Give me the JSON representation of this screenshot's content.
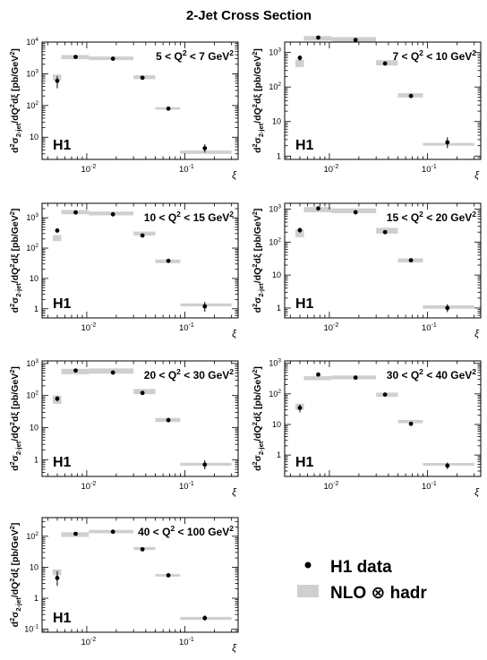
{
  "figure": {
    "title": "2-Jet Cross Section",
    "xlabel": "ξ",
    "ylabel_parts": {
      "d1": "d",
      "sup2a": "2",
      "sigma": "σ",
      "sub": "2-jet",
      "slash": "/dQ",
      "sup2b": "2",
      "dxi": "dξ",
      "unit": " [pb/GeV",
      "sup2c": "2",
      "close": "]"
    },
    "x_tick_labels": [
      {
        "value": 0.01,
        "base": "10",
        "exp": "-2"
      },
      {
        "value": 0.1,
        "base": "10",
        "exp": "-1"
      }
    ],
    "experiment_label": "H1",
    "legend": {
      "data_label": "H1 data",
      "theory_label": "NLO ⊗ hadr",
      "data_marker": "black dot with vertical error bar",
      "theory_marker": "grey band"
    },
    "colors": {
      "data": "#000000",
      "band": "#cfcfcf",
      "frame": "#000000"
    }
  },
  "chart_data": [
    {
      "type": "scatter",
      "panel": "5 < Q² < 7 GeV²",
      "q2_label": {
        "a": "5 < Q",
        "sup": "2",
        "b": " < 7 GeV",
        "sup2": "2"
      },
      "xscale": "log",
      "yscale": "log",
      "xlim": [
        0.0035,
        0.35
      ],
      "ylim": [
        2,
        10000
      ],
      "y_ticks": [
        {
          "value": 10,
          "base": "10",
          "exp": ""
        },
        {
          "value": 100,
          "base": "10",
          "exp": "2"
        },
        {
          "value": 1000,
          "base": "10",
          "exp": "3"
        },
        {
          "value": 10000,
          "base": "10",
          "exp": "4"
        }
      ],
      "bins": [
        [
          0.0045,
          0.0055
        ],
        [
          0.0055,
          0.0105
        ],
        [
          0.0105,
          0.03
        ],
        [
          0.03,
          0.05
        ],
        [
          0.05,
          0.09
        ],
        [
          0.09,
          0.3
        ]
      ],
      "data": {
        "x": [
          0.005,
          0.0077,
          0.0185,
          0.037,
          0.068,
          0.16
        ],
        "y": [
          600,
          3400,
          3000,
          750,
          80,
          4.5
        ],
        "err_lo": [
          250,
          150,
          150,
          50,
          6,
          1.2
        ],
        "err_hi": [
          250,
          150,
          150,
          50,
          6,
          1.5
        ]
      },
      "nlo": {
        "y_lo": [
          620,
          2900,
          2700,
          680,
          74,
          3.0
        ],
        "y_hi": [
          950,
          3900,
          3500,
          900,
          88,
          3.8
        ]
      }
    },
    {
      "type": "scatter",
      "panel": "7 < Q² < 10 GeV²",
      "q2_label": {
        "a": "7 < Q",
        "sup": "2",
        "b": " < 10 GeV",
        "sup2": "2"
      },
      "xscale": "log",
      "yscale": "log",
      "xlim": [
        0.0035,
        0.35
      ],
      "ylim": [
        0.8,
        2000
      ],
      "y_ticks": [
        {
          "value": 1,
          "base": "1",
          "exp": ""
        },
        {
          "value": 10,
          "base": "10",
          "exp": ""
        },
        {
          "value": 100,
          "base": "10",
          "exp": "2"
        },
        {
          "value": 1000,
          "base": "10",
          "exp": "3"
        }
      ],
      "bins": [
        [
          0.0045,
          0.0055
        ],
        [
          0.0055,
          0.0105
        ],
        [
          0.0105,
          0.03
        ],
        [
          0.03,
          0.05
        ],
        [
          0.05,
          0.09
        ],
        [
          0.09,
          0.3
        ]
      ],
      "data": {
        "x": [
          0.005,
          0.0077,
          0.0185,
          0.037,
          0.068,
          0.16
        ],
        "y": [
          700,
          2700,
          2300,
          480,
          55,
          2.5
        ],
        "err_lo": [
          120,
          120,
          120,
          40,
          5,
          0.8
        ],
        "err_hi": [
          120,
          120,
          120,
          40,
          5,
          1.0
        ]
      },
      "nlo": {
        "y_lo": [
          380,
          2200,
          2000,
          420,
          50,
          2.0
        ],
        "y_hi": [
          620,
          3000,
          2800,
          600,
          66,
          2.4
        ]
      }
    },
    {
      "type": "scatter",
      "panel": "10 < Q² < 15 GeV²",
      "q2_label": {
        "a": "10 < Q",
        "sup": "2",
        "b": " < 15 GeV",
        "sup2": "2"
      },
      "xscale": "log",
      "yscale": "log",
      "xlim": [
        0.0035,
        0.35
      ],
      "ylim": [
        0.5,
        3000
      ],
      "y_ticks": [
        {
          "value": 1,
          "base": "1",
          "exp": ""
        },
        {
          "value": 10,
          "base": "10",
          "exp": ""
        },
        {
          "value": 100,
          "base": "10",
          "exp": "2"
        },
        {
          "value": 1000,
          "base": "10",
          "exp": "3"
        }
      ],
      "bins": [
        [
          0.0045,
          0.0055
        ],
        [
          0.0055,
          0.0105
        ],
        [
          0.0105,
          0.03
        ],
        [
          0.03,
          0.05
        ],
        [
          0.05,
          0.09
        ],
        [
          0.09,
          0.3
        ]
      ],
      "data": {
        "x": [
          0.005,
          0.0077,
          0.0185,
          0.037,
          0.068,
          0.16
        ],
        "y": [
          380,
          1500,
          1300,
          260,
          38,
          1.2
        ],
        "err_lo": [
          60,
          60,
          60,
          20,
          3,
          0.4
        ],
        "err_hi": [
          60,
          60,
          60,
          20,
          3,
          0.5
        ]
      },
      "nlo": {
        "y_lo": [
          170,
          1300,
          1200,
          260,
          32,
          1.2
        ],
        "y_hi": [
          270,
          1800,
          1600,
          350,
          42,
          1.5
        ]
      }
    },
    {
      "type": "scatter",
      "panel": "15 < Q² < 20 GeV²",
      "q2_label": {
        "a": "15 < Q",
        "sup": "2",
        "b": " < 20 GeV",
        "sup2": "2"
      },
      "xscale": "log",
      "yscale": "log",
      "xlim": [
        0.0035,
        0.35
      ],
      "ylim": [
        0.5,
        1500
      ],
      "y_ticks": [
        {
          "value": 1,
          "base": "1",
          "exp": ""
        },
        {
          "value": 10,
          "base": "10",
          "exp": ""
        },
        {
          "value": 100,
          "base": "10",
          "exp": "2"
        },
        {
          "value": 1000,
          "base": "10",
          "exp": "3"
        }
      ],
      "bins": [
        [
          0.0045,
          0.0055
        ],
        [
          0.0055,
          0.0105
        ],
        [
          0.0105,
          0.03
        ],
        [
          0.03,
          0.05
        ],
        [
          0.05,
          0.09
        ],
        [
          0.09,
          0.3
        ]
      ],
      "data": {
        "x": [
          0.005,
          0.0077,
          0.0185,
          0.037,
          0.068,
          0.16
        ],
        "y": [
          230,
          1050,
          800,
          200,
          28,
          1.0
        ],
        "err_lo": [
          40,
          40,
          40,
          15,
          2,
          0.25
        ],
        "err_hi": [
          40,
          40,
          40,
          15,
          2,
          0.3
        ]
      },
      "nlo": {
        "y_lo": [
          140,
          800,
          750,
          180,
          24,
          0.95
        ],
        "y_hi": [
          240,
          1150,
          1050,
          270,
          32,
          1.2
        ]
      }
    },
    {
      "type": "scatter",
      "panel": "20 < Q² < 30 GeV²",
      "q2_label": {
        "a": "20 < Q",
        "sup": "2",
        "b": " < 30 GeV",
        "sup2": "2"
      },
      "xscale": "log",
      "yscale": "log",
      "xlim": [
        0.0035,
        0.35
      ],
      "ylim": [
        0.3,
        1200
      ],
      "y_ticks": [
        {
          "value": 1,
          "base": "1",
          "exp": ""
        },
        {
          "value": 10,
          "base": "10",
          "exp": ""
        },
        {
          "value": 100,
          "base": "10",
          "exp": "2"
        },
        {
          "value": 1000,
          "base": "10",
          "exp": "3"
        }
      ],
      "bins": [
        [
          0.0045,
          0.0055
        ],
        [
          0.0055,
          0.0105
        ],
        [
          0.0105,
          0.03
        ],
        [
          0.03,
          0.05
        ],
        [
          0.05,
          0.09
        ],
        [
          0.09,
          0.3
        ]
      ],
      "data": {
        "x": [
          0.005,
          0.0077,
          0.0185,
          0.037,
          0.068,
          0.16
        ],
        "y": [
          80,
          600,
          520,
          120,
          17,
          0.7
        ],
        "err_lo": [
          15,
          25,
          25,
          10,
          1.5,
          0.2
        ],
        "err_hi": [
          15,
          25,
          25,
          10,
          1.5,
          0.25
        ]
      },
      "nlo": {
        "y_lo": [
          55,
          460,
          480,
          110,
          15,
          0.65
        ],
        "y_hi": [
          100,
          680,
          700,
          160,
          20,
          0.8
        ]
      }
    },
    {
      "type": "scatter",
      "panel": "30 < Q² < 40 GeV²",
      "q2_label": {
        "a": "30 < Q",
        "sup": "2",
        "b": " < 40 GeV",
        "sup2": "2"
      },
      "xscale": "log",
      "yscale": "log",
      "xlim": [
        0.0035,
        0.35
      ],
      "ylim": [
        0.2,
        1200
      ],
      "y_ticks": [
        {
          "value": 1,
          "base": "1",
          "exp": ""
        },
        {
          "value": 10,
          "base": "10",
          "exp": ""
        },
        {
          "value": 100,
          "base": "10",
          "exp": "2"
        },
        {
          "value": 1000,
          "base": "10",
          "exp": "3"
        }
      ],
      "bins": [
        [
          0.0045,
          0.0055
        ],
        [
          0.0055,
          0.0105
        ],
        [
          0.0105,
          0.03
        ],
        [
          0.03,
          0.05
        ],
        [
          0.05,
          0.09
        ],
        [
          0.09,
          0.3
        ]
      ],
      "data": {
        "x": [
          0.005,
          0.0077,
          0.0185,
          0.037,
          0.068,
          0.16
        ],
        "y": [
          35,
          430,
          340,
          95,
          10.5,
          0.45
        ],
        "err_lo": [
          10,
          20,
          20,
          8,
          1,
          0.1
        ],
        "err_hi": [
          10,
          20,
          20,
          8,
          1,
          0.12
        ]
      },
      "nlo": {
        "y_lo": [
          30,
          280,
          300,
          80,
          11,
          0.45
        ],
        "y_hi": [
          48,
          380,
          400,
          110,
          14,
          0.55
        ]
      }
    },
    {
      "type": "scatter",
      "panel": "40 < Q² < 100 GeV²",
      "q2_label": {
        "a": "40 < Q",
        "sup": "2",
        "b": " < 100 GeV",
        "sup2": "2"
      },
      "xscale": "log",
      "yscale": "log",
      "xlim": [
        0.0035,
        0.35
      ],
      "ylim": [
        0.08,
        400
      ],
      "y_ticks": [
        {
          "value": 0.1,
          "base": "10",
          "exp": "-1"
        },
        {
          "value": 1,
          "base": "1",
          "exp": ""
        },
        {
          "value": 10,
          "base": "10",
          "exp": ""
        },
        {
          "value": 100,
          "base": "10",
          "exp": "2"
        }
      ],
      "bins": [
        [
          0.0045,
          0.0055
        ],
        [
          0.0055,
          0.0105
        ],
        [
          0.0105,
          0.03
        ],
        [
          0.03,
          0.05
        ],
        [
          0.05,
          0.09
        ],
        [
          0.09,
          0.3
        ]
      ],
      "data": {
        "x": [
          0.005,
          0.0077,
          0.0185,
          0.037,
          0.068,
          0.16
        ],
        "y": [
          4.5,
          120,
          140,
          38,
          5.5,
          0.23
        ],
        "err_lo": [
          2.0,
          8,
          8,
          3,
          0.5,
          0.04
        ],
        "err_hi": [
          3.0,
          8,
          8,
          3,
          0.5,
          0.05
        ]
      },
      "nlo": {
        "y_lo": [
          5.5,
          95,
          125,
          36,
          5.0,
          0.2
        ],
        "y_hi": [
          8.5,
          135,
          160,
          45,
          6.0,
          0.25
        ]
      }
    }
  ]
}
